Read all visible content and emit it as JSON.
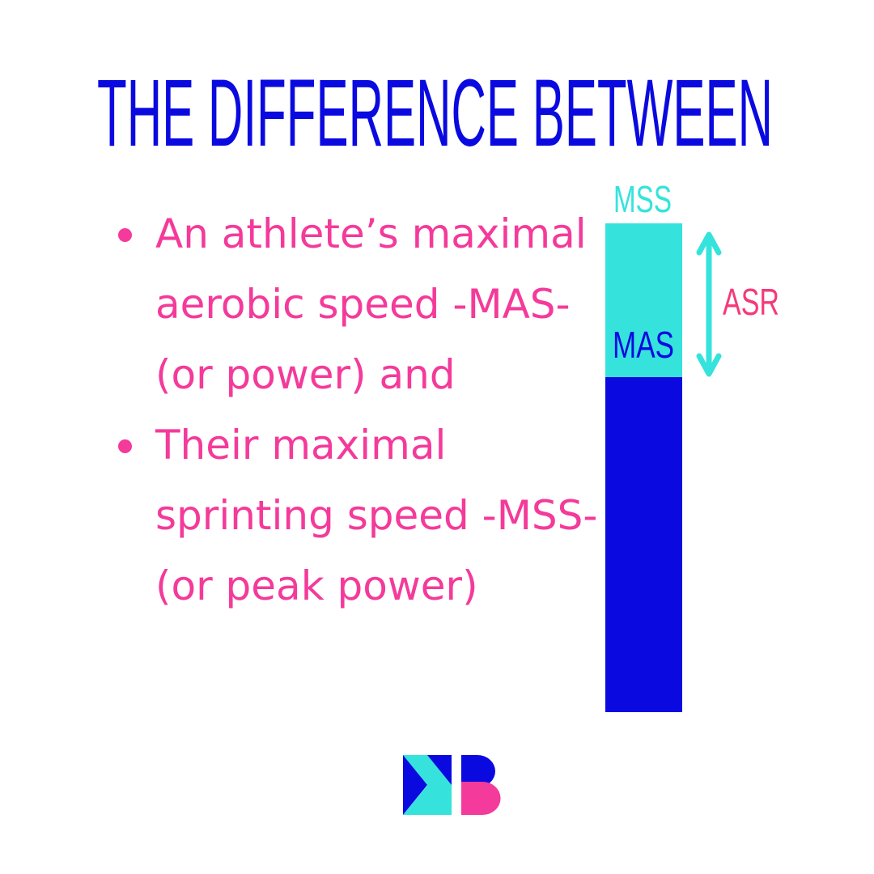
{
  "title": "THE DIFFERENCE BETWEEN",
  "bullets": [
    "An athlete’s maximal aerobic speed -MAS- (or power) and",
    "Their maximal sprinting speed -MSS- (or peak power)"
  ],
  "diagram": {
    "top_label": "MSS",
    "middle_label": "MAS",
    "range_label": "ASR"
  }
}
